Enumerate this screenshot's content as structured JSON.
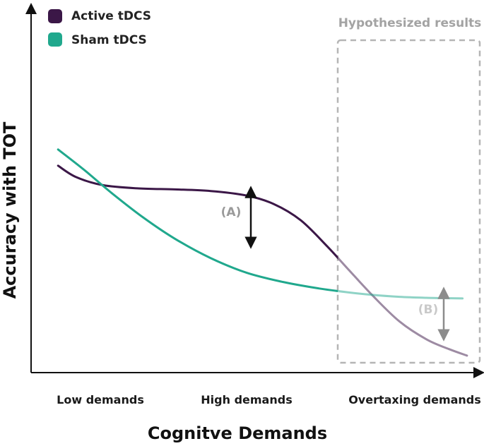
{
  "chart_data": {
    "type": "line",
    "title": "",
    "xlabel": "Cognitve Demands",
    "ylabel": "Accuracy with TOT",
    "xlim": [
      0,
      10
    ],
    "ylim": [
      0,
      10
    ],
    "categories": [
      "Low demands",
      "High demands",
      "Overtaxing demands"
    ],
    "category_positions": [
      1.6,
      4.8,
      9.2
    ],
    "legend": [
      {
        "label": "Active tDCS",
        "color": "#3b1747"
      },
      {
        "label": "Sham tDCS",
        "color": "#20a88d"
      }
    ],
    "series": [
      {
        "name": "Active tDCS",
        "color": "#3b1747",
        "x": [
          0.6,
          1.0,
          1.6,
          2.4,
          3.2,
          4.0,
          4.8,
          5.4,
          6.0,
          6.6,
          7.05,
          7.6,
          8.2,
          8.8,
          9.3,
          9.7
        ],
        "y": [
          6.2,
          5.85,
          5.6,
          5.5,
          5.47,
          5.42,
          5.28,
          5.02,
          4.52,
          3.7,
          3.02,
          2.2,
          1.4,
          0.85,
          0.55,
          0.35
        ]
      },
      {
        "name": "Sham tDCS",
        "color": "#20a88d",
        "x": [
          0.6,
          1.2,
          1.8,
          2.5,
          3.2,
          4.0,
          4.8,
          5.6,
          6.4,
          7.05,
          7.6,
          8.2,
          8.8,
          9.2,
          9.6
        ],
        "y": [
          6.7,
          6.05,
          5.35,
          4.6,
          3.95,
          3.35,
          2.9,
          2.62,
          2.42,
          2.3,
          2.22,
          2.16,
          2.13,
          2.12,
          2.11
        ]
      }
    ],
    "hypothesized_region": {
      "label": "Hypothesized results",
      "x_start": 7.05
    },
    "annotations": [
      {
        "label": "(A)",
        "x": 4.8,
        "y_top": 5.28,
        "y_bottom": 2.9
      },
      {
        "label": "(B)",
        "x": 9.5,
        "y_top": 2.11,
        "y_bottom": 0.45
      }
    ]
  }
}
